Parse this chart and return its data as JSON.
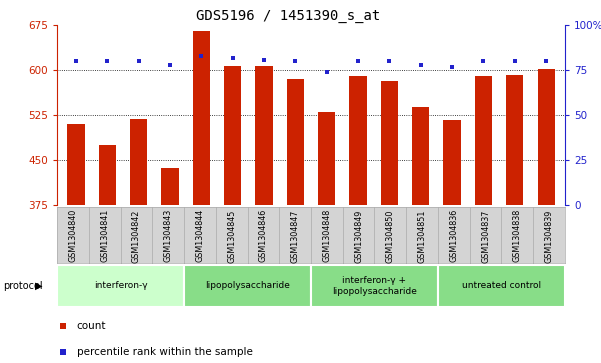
{
  "title": "GDS5196 / 1451390_s_at",
  "samples": [
    "GSM1304840",
    "GSM1304841",
    "GSM1304842",
    "GSM1304843",
    "GSM1304844",
    "GSM1304845",
    "GSM1304846",
    "GSM1304847",
    "GSM1304848",
    "GSM1304849",
    "GSM1304850",
    "GSM1304851",
    "GSM1304836",
    "GSM1304837",
    "GSM1304838",
    "GSM1304839"
  ],
  "counts": [
    510,
    475,
    518,
    437,
    665,
    608,
    607,
    585,
    530,
    590,
    582,
    538,
    517,
    590,
    592,
    602
  ],
  "percentiles": [
    80,
    80,
    80,
    78,
    83,
    82,
    81,
    80,
    74,
    80,
    80,
    78,
    77,
    80,
    80,
    80
  ],
  "bar_color": "#cc2200",
  "dot_color": "#2222cc",
  "ylim_left": [
    375,
    675
  ],
  "ylim_right": [
    0,
    100
  ],
  "yticks_left": [
    375,
    450,
    525,
    600,
    675
  ],
  "yticks_right": [
    0,
    25,
    50,
    75,
    100
  ],
  "grid_values": [
    450,
    525,
    600
  ],
  "protocols": [
    {
      "label": "interferon-γ",
      "start": 0,
      "end": 4,
      "color": "#ccffcc"
    },
    {
      "label": "lipopolysaccharide",
      "start": 4,
      "end": 8,
      "color": "#88dd88"
    },
    {
      "label": "interferon-γ +\nlipopolysaccharide",
      "start": 8,
      "end": 12,
      "color": "#88dd88"
    },
    {
      "label": "untreated control",
      "start": 12,
      "end": 16,
      "color": "#88dd88"
    }
  ],
  "legend_count_label": "count",
  "legend_percentile_label": "percentile rank within the sample",
  "bar_width": 0.55,
  "title_fontsize": 10,
  "tick_fontsize": 7.5,
  "protocol_label": "protocol"
}
